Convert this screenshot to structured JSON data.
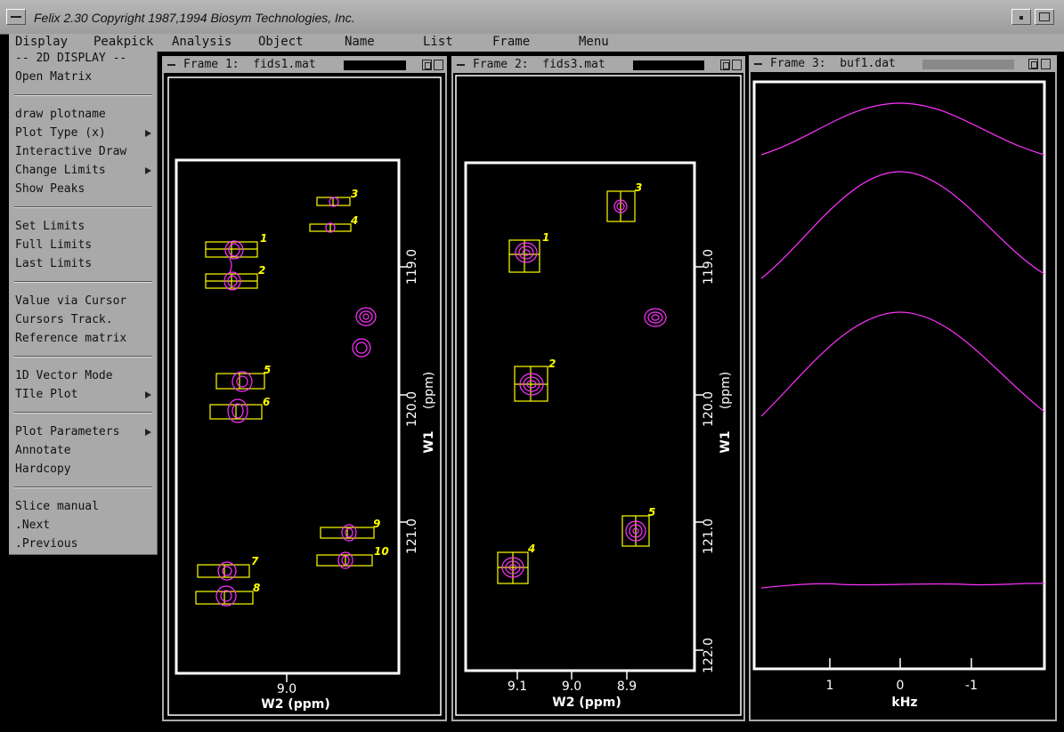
{
  "window": {
    "title": "Felix 2.30  Copyright 1987,1994 Biosym Technologies, Inc."
  },
  "menubar": [
    "Display",
    "Peakpick",
    "Analysis",
    "Object",
    "Name",
    "List",
    "Frame",
    "Menu"
  ],
  "dropdown": {
    "header": "-- 2D DISPLAY --",
    "items": [
      "Open Matrix",
      "draw plotname",
      "Plot Type (x)",
      "Interactive Draw",
      "Change Limits",
      "Show Peaks",
      "Set  Limits",
      "Full Limits",
      "Last Limits",
      "Value via Cursor",
      "Cursors Track.",
      "Reference matrix",
      "1D Vector Mode",
      "TIle Plot",
      "Plot Parameters",
      "Annotate",
      "Hardcopy",
      "Slice manual",
      ".Next",
      ".Previous"
    ]
  },
  "frames": [
    {
      "title": "Frame 1:  fids1.mat",
      "x_ticks": [
        "9.0"
      ],
      "xlabel": "W2  (ppm)",
      "y_ticks": [
        "119.0",
        "120.0",
        "121.0"
      ],
      "ylabel_a": "W1",
      "ylabel_b": "(ppm)",
      "peaks": [
        "1",
        "2",
        "3",
        "4",
        "5",
        "6",
        "7",
        "8",
        "9",
        "10"
      ]
    },
    {
      "title": "Frame 2:  fids3.mat",
      "x_ticks": [
        "9.1",
        "9.0",
        "8.9"
      ],
      "xlabel": "W2  (ppm)",
      "y_ticks": [
        "119.0",
        "120.0",
        "121.0",
        "122.0"
      ],
      "ylabel_a": "W1",
      "ylabel_b": "(ppm)",
      "peaks": [
        "1",
        "2",
        "3",
        "4",
        "5"
      ]
    },
    {
      "title": "Frame 3:  buf1.dat",
      "x_ticks": [
        "1",
        "0",
        "-1"
      ],
      "xlabel": "kHz"
    }
  ],
  "colors": {
    "contour": "#ff33ff",
    "peak_box": "#ffff00",
    "axis": "#ffffff",
    "chrome": "#a9a9a9"
  }
}
